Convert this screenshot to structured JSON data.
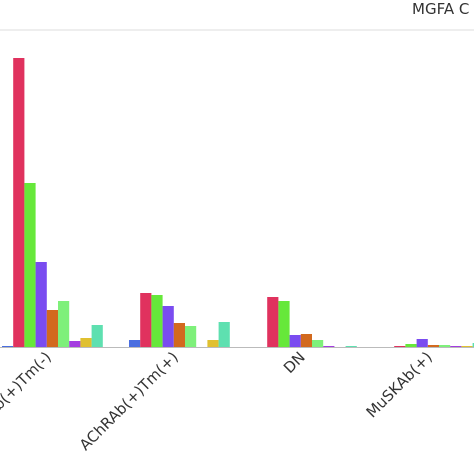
{
  "chart_data": {
    "type": "bar",
    "title": "MGFA C",
    "categories": [
      "b(+)Tm(-)",
      "AChRAb(+)Tm(+)",
      "DN",
      "MuSKAb(+)"
    ],
    "ylim": [
      0,
      300
    ],
    "series": [
      {
        "color": "#4a6ee0",
        "values": [
          1,
          7,
          0,
          0
        ]
      },
      {
        "color": "#e0325e",
        "values": [
          289,
          54,
          50,
          1
        ]
      },
      {
        "color": "#66e83a",
        "values": [
          164,
          52,
          46,
          3
        ]
      },
      {
        "color": "#7a4cf0",
        "values": [
          85,
          41,
          12,
          8
        ]
      },
      {
        "color": "#d2691e",
        "values": [
          37,
          24,
          13,
          2
        ]
      },
      {
        "color": "#7ef07a",
        "values": [
          46,
          21,
          7,
          2
        ]
      },
      {
        "color": "#a43ce0",
        "values": [
          6,
          0,
          1,
          1
        ]
      },
      {
        "color": "#e0c030",
        "values": [
          9,
          7,
          0,
          1
        ]
      },
      {
        "color": "#5ee0b0",
        "values": [
          22,
          25,
          1,
          4
        ]
      }
    ]
  }
}
